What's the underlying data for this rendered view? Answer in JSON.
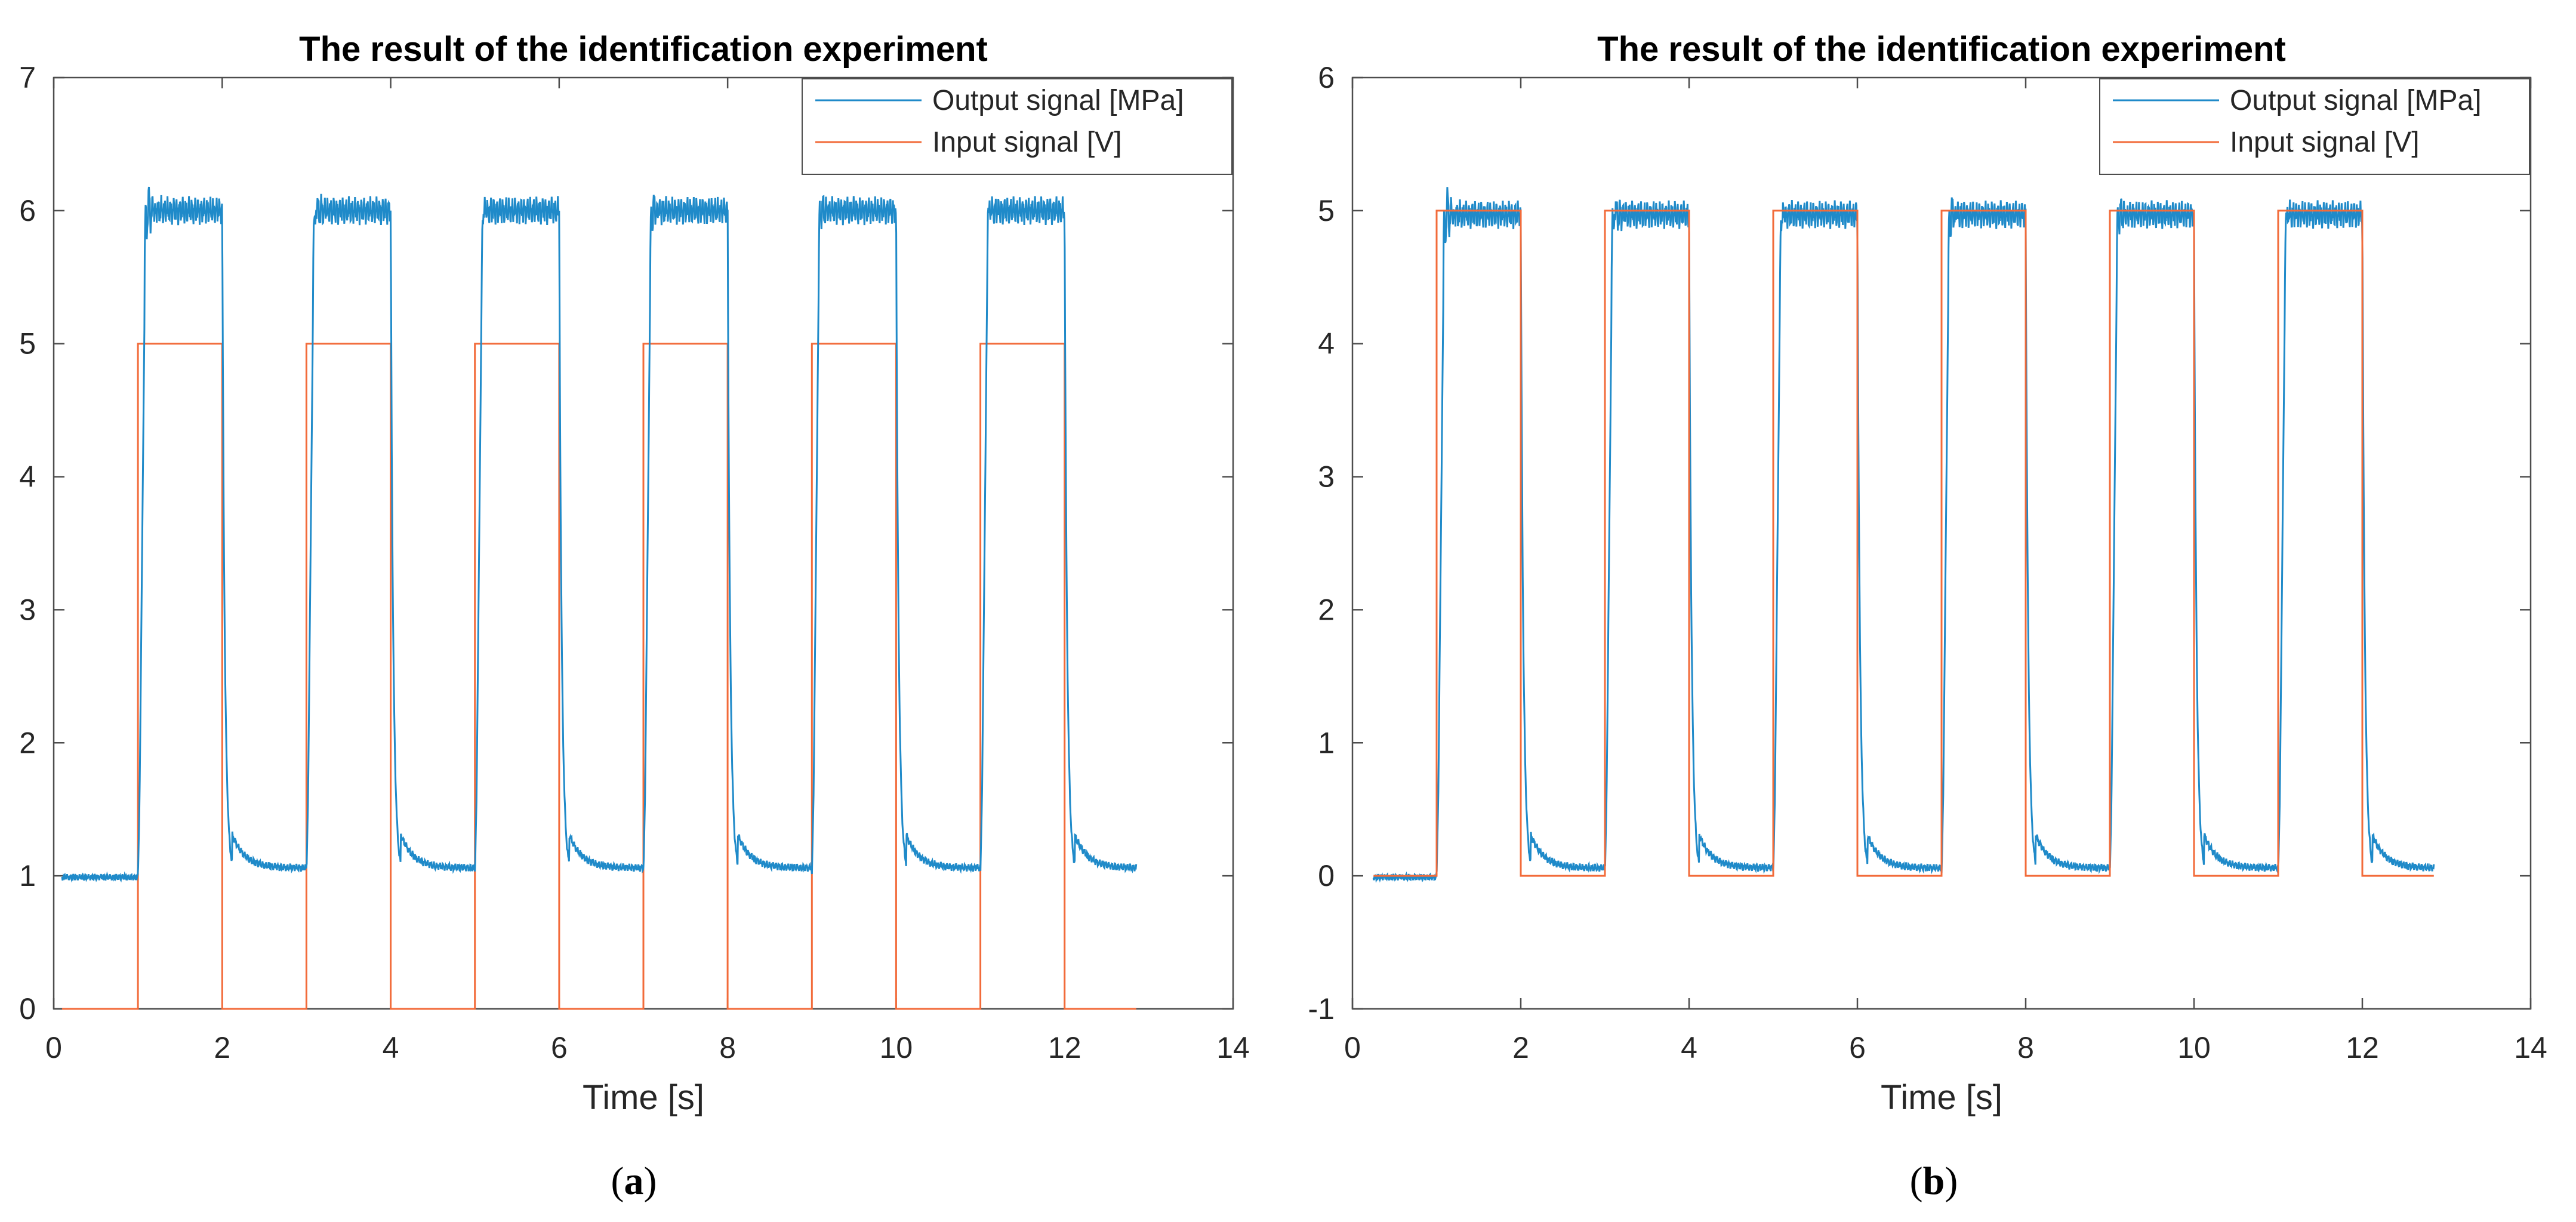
{
  "figure": {
    "captions": [
      "(",
      "a",
      ")",
      "(",
      "b",
      ")"
    ]
  },
  "colors": {
    "output": "#1f8ac9",
    "input": "#f26b3a",
    "axis": "#4d4d4d",
    "text": "#262626"
  },
  "chart_data": [
    {
      "type": "line",
      "panel": "a",
      "title": "The result of the identification experiment",
      "xlabel": "Time [s]",
      "ylabel": "",
      "xlim": [
        0,
        14
      ],
      "ylim": [
        0,
        7
      ],
      "xticks": [
        0,
        2,
        4,
        6,
        8,
        10,
        12,
        14
      ],
      "yticks": [
        0,
        1,
        2,
        3,
        4,
        5,
        6,
        7
      ],
      "xtick_labels": [
        "0",
        "2",
        "4",
        "6",
        "8",
        "10",
        "12",
        "14"
      ],
      "ytick_labels": [
        "0",
        "1",
        "2",
        "3",
        "4",
        "5",
        "6",
        "7"
      ],
      "legend_position": "top-right",
      "grid": false,
      "series": [
        {
          "name": "Output signal [MPa]",
          "kind": "measured-response",
          "x_start": 0.1,
          "x_end": 12.85,
          "low": 1.0,
          "high": 6.0,
          "overshoot_peaks": [
            6.27,
            6.18,
            6.06,
            6.17,
            6.12,
            6.04
          ],
          "note": "responds to each rising edge of the input, settles near 6.0, decays back to ~1.03 after each falling edge"
        },
        {
          "name": "Input signal [V]",
          "kind": "square-wave",
          "x_start": 0.1,
          "x_end": 12.85,
          "low": 0,
          "high": 5,
          "on_intervals": [
            [
              1,
              2
            ],
            [
              3,
              4
            ],
            [
              5,
              6
            ],
            [
              7,
              8
            ],
            [
              9,
              10
            ],
            [
              11,
              12
            ]
          ]
        }
      ]
    },
    {
      "type": "line",
      "panel": "b",
      "title": "The result of the identification experiment",
      "xlabel": "Time [s]",
      "ylabel": "",
      "xlim": [
        0,
        14
      ],
      "ylim": [
        -1,
        6
      ],
      "xticks": [
        0,
        2,
        4,
        6,
        8,
        10,
        12,
        14
      ],
      "yticks": [
        -1,
        0,
        1,
        2,
        3,
        4,
        5,
        6
      ],
      "xtick_labels": [
        "0",
        "2",
        "4",
        "6",
        "8",
        "10",
        "12",
        "14"
      ],
      "ytick_labels": [
        "-1",
        "0",
        "1",
        "2",
        "3",
        "4",
        "5",
        "6"
      ],
      "legend_position": "top-right",
      "grid": false,
      "series": [
        {
          "name": "Output signal [MPa]",
          "kind": "measured-response",
          "x_start": 0.25,
          "x_end": 12.85,
          "low": 0.0,
          "high": 4.97,
          "overshoot_peaks": [
            5.27,
            5.18,
            5.06,
            5.17,
            5.12,
            5.03
          ],
          "note": "normalized output: rises to ~4.97 after each rising edge, decays to ~0.03 after each falling edge"
        },
        {
          "name": "Input signal [V]",
          "kind": "square-wave",
          "x_start": 0.25,
          "x_end": 12.85,
          "low": 0,
          "high": 5,
          "on_intervals": [
            [
              1,
              2
            ],
            [
              3,
              4
            ],
            [
              5,
              6
            ],
            [
              7,
              8
            ],
            [
              9,
              10
            ],
            [
              11,
              12
            ]
          ]
        }
      ]
    }
  ]
}
